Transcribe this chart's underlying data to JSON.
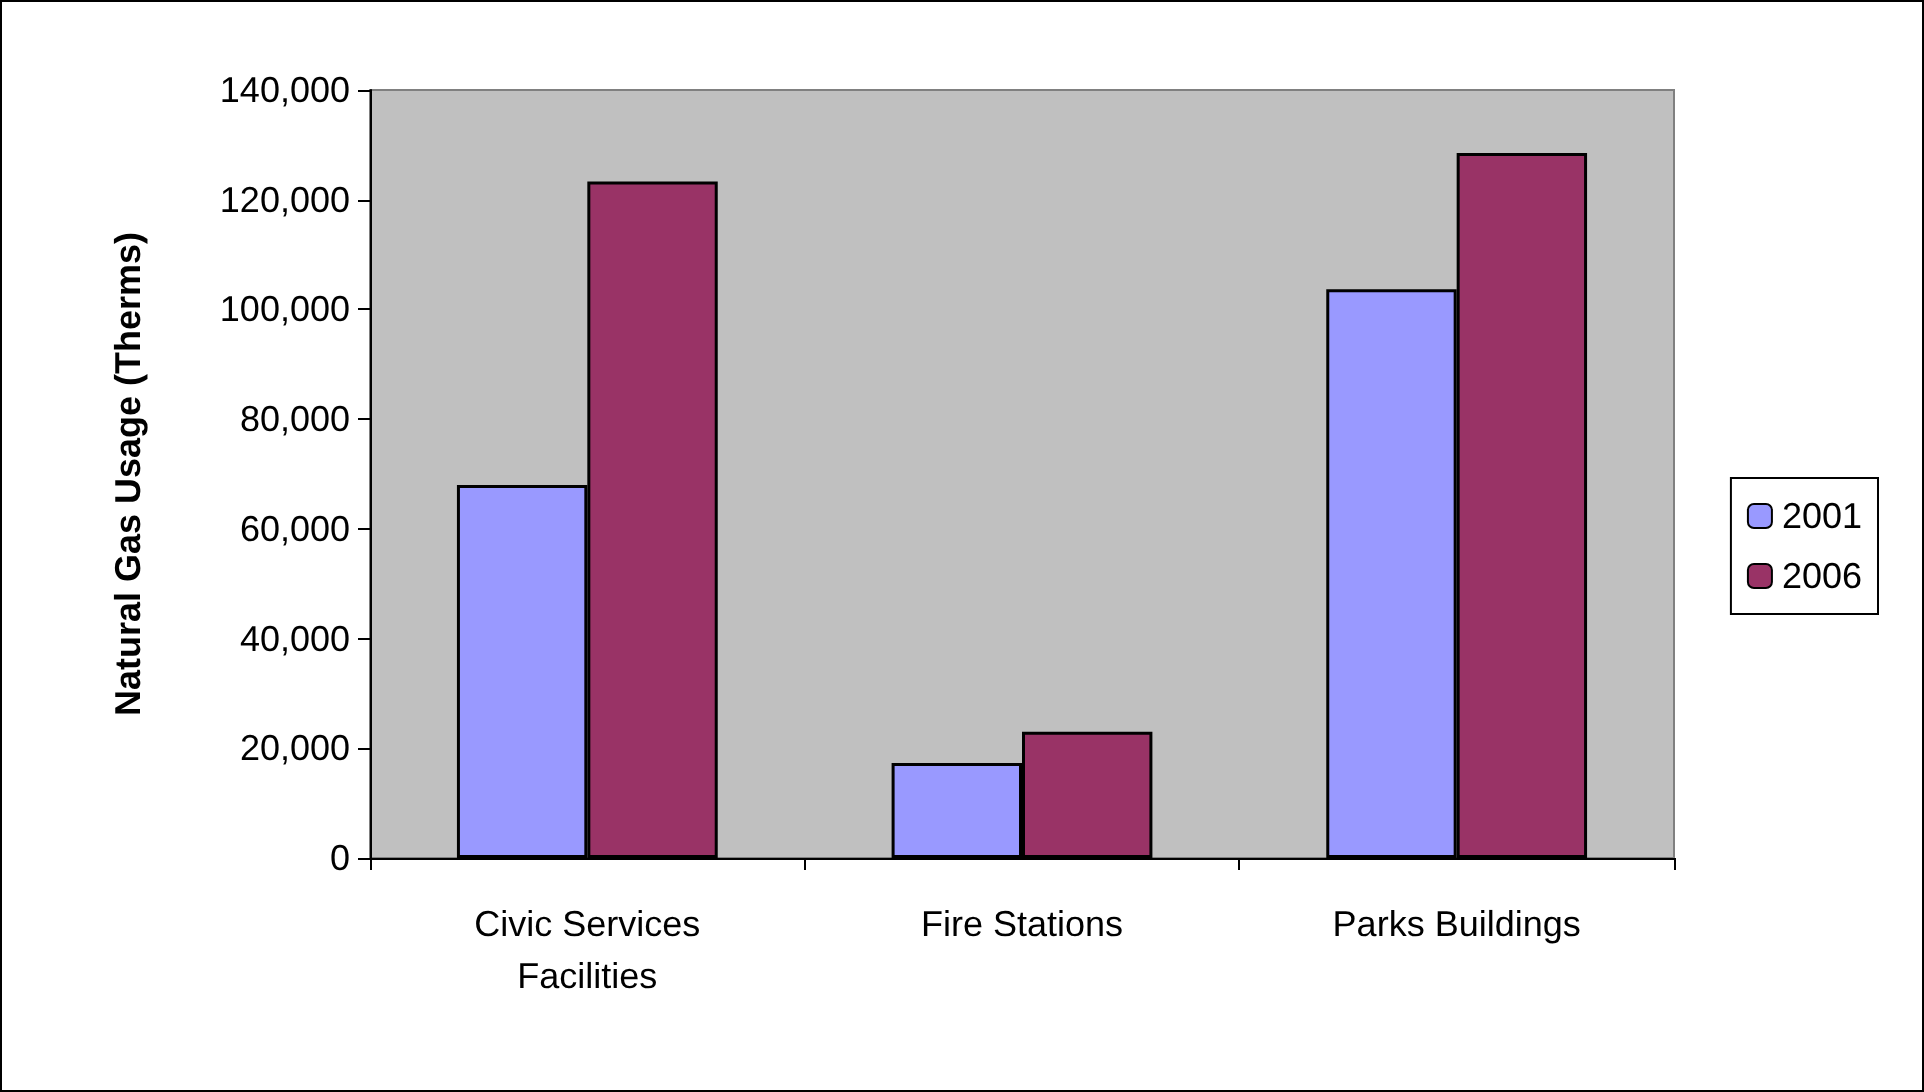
{
  "chart_data": {
    "type": "bar",
    "ylabel": "Natural Gas Usage (Therms)",
    "categories": [
      "Civic Services\nFacilities",
      "Fire Stations",
      "Parks Buildings"
    ],
    "series": [
      {
        "name": "2001",
        "color": "#9999ff",
        "values": [
          68000,
          17300,
          103700
        ]
      },
      {
        "name": "2006",
        "color": "#993366",
        "values": [
          123300,
          23000,
          128500
        ]
      }
    ],
    "ylim": [
      0,
      140000
    ],
    "yticks": [
      0,
      {
        "value": 20000,
        "label": "20,000"
      },
      {
        "value": 40000,
        "label": "40,000"
      },
      {
        "value": 60000,
        "label": "60,000"
      },
      {
        "value": 80000,
        "label": "80,000"
      },
      {
        "value": 100000,
        "label": "100,000"
      },
      {
        "value": 120000,
        "label": "120,000"
      },
      {
        "value": 140000,
        "label": "140,000"
      }
    ],
    "grid": false,
    "legend": "right"
  }
}
